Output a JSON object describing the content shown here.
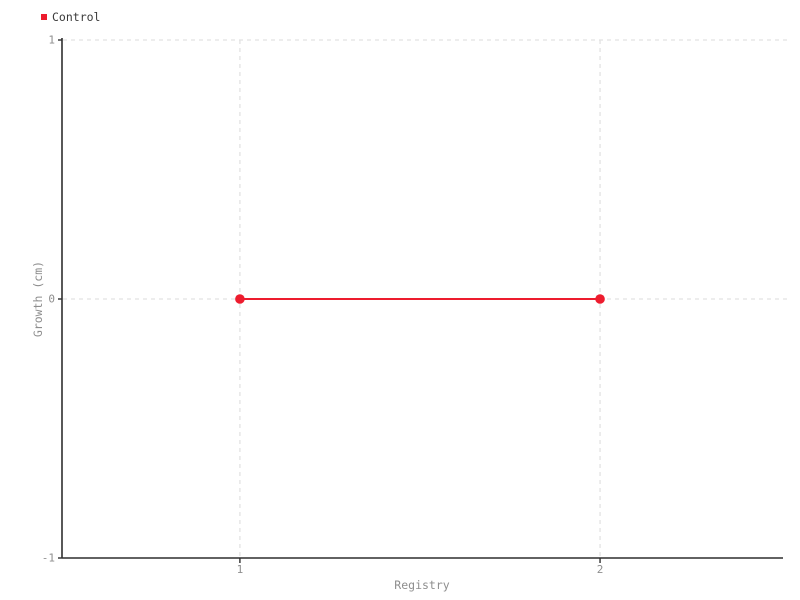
{
  "colors": {
    "background": "#ffffff",
    "series": "#ed1c2e",
    "grid": "#e2e2e2",
    "axis": "#2f2f2f",
    "tick_label": "#8e8e8e",
    "axis_title": "#8e8e8e",
    "legend_text": "#3a3a3a"
  },
  "legend": {
    "items": [
      {
        "label": "Control",
        "color": "#ed1c2e"
      }
    ]
  },
  "chart_data": {
    "type": "line",
    "title": "",
    "xlabel": "Registry",
    "ylabel": "Growth (cm)",
    "series": [
      {
        "name": "Control",
        "color": "#ed1c2e",
        "x": [
          1,
          2
        ],
        "y": [
          0,
          0
        ]
      }
    ],
    "xlim": [
      0.506,
      2.508
    ],
    "ylim": [
      -1,
      1
    ],
    "xticks": [
      1,
      2
    ],
    "yticks": [
      -1,
      0,
      1
    ],
    "grid": true,
    "grid_style": "dashed",
    "legend_position": "top-left"
  }
}
